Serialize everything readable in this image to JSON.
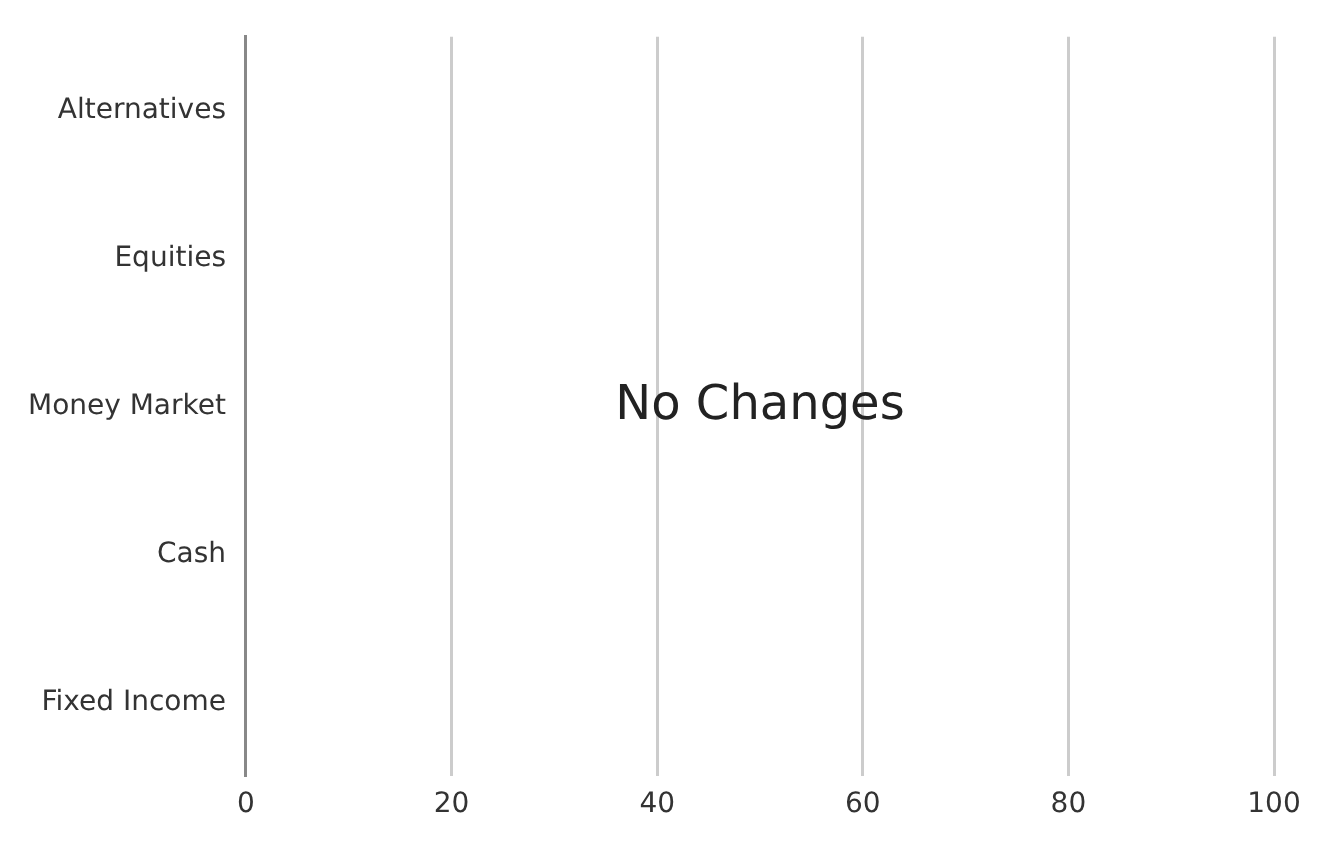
{
  "chart_data": {
    "type": "bar",
    "orientation": "horizontal",
    "categories": [
      "Alternatives",
      "Equities",
      "Money Market",
      "Cash",
      "Fixed Income"
    ],
    "values": [
      0,
      0,
      0,
      0,
      0
    ],
    "xlim": [
      0,
      100
    ],
    "xticks": [
      0,
      20,
      40,
      60,
      80,
      100
    ],
    "grid": "x",
    "legend": false,
    "annotations": [
      "No Changes"
    ]
  }
}
